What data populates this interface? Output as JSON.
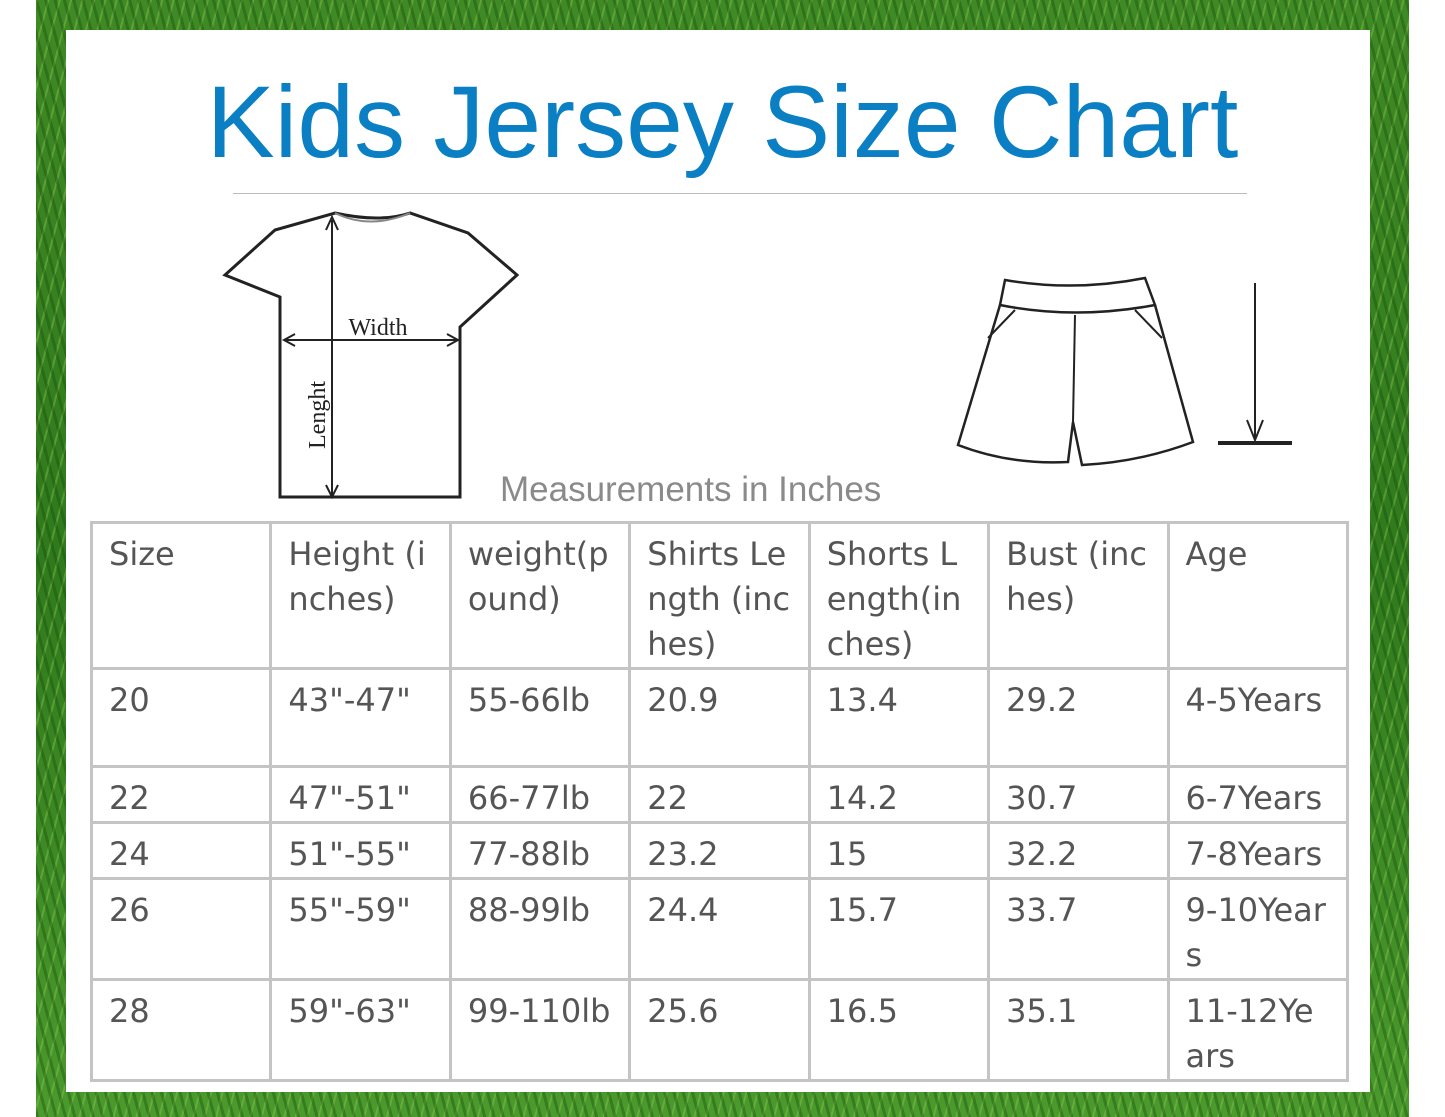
{
  "header": {
    "title": "Kids Jersey Size Chart"
  },
  "diagram": {
    "width_label": "Width",
    "length_label": "Lenght"
  },
  "caption": "Measurements in Inches",
  "table": {
    "headers": [
      "Size",
      "Height (inches)",
      "weight(pound)",
      "Shirts Length (inches)",
      "Shorts Length(inches)",
      "Bust (inches)",
      "Age"
    ],
    "rows": [
      [
        "20",
        "43\"-47\"",
        "55-66lb",
        "20.9",
        "13.4",
        "29.2",
        "4-5Years"
      ],
      [
        "22",
        "47\"-51\"",
        "66-77lb",
        "22",
        "14.2",
        "30.7",
        "6-7Years"
      ],
      [
        "24",
        "51\"-55\"",
        "77-88lb",
        "23.2",
        "15",
        "32.2",
        "7-8Years"
      ],
      [
        "26",
        "55\"-59\"",
        "88-99lb",
        "24.4",
        "15.7",
        "33.7",
        "9-10Years"
      ],
      [
        "28",
        "59\"-63\"",
        "99-110lb",
        "25.6",
        "16.5",
        "35.1",
        "11-12Years"
      ]
    ]
  }
}
